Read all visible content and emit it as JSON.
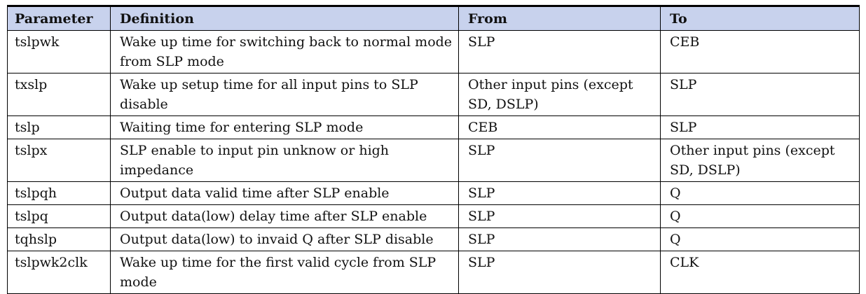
{
  "headers": {
    "parameter": "Parameter",
    "definition": "Definition",
    "from": "From",
    "to": "To"
  },
  "rows": [
    {
      "parameter": "tslpwk",
      "definition": "Wake up time for switching back to normal mode from SLP mode",
      "from": "SLP",
      "to": "CEB"
    },
    {
      "parameter": "txslp",
      "definition": "Wake up setup time for all input pins to SLP disable",
      "from": "Other input pins (except SD, DSLP)",
      "to": "SLP"
    },
    {
      "parameter": "tslp",
      "definition": "Waiting time for entering SLP mode",
      "from": "CEB",
      "to": "SLP"
    },
    {
      "parameter": "tslpx",
      "definition": "SLP enable to input pin unknow or high impedance",
      "from": "SLP",
      "to": "Other input pins (except SD, DSLP)"
    },
    {
      "parameter": "tslpqh",
      "definition": "Output data valid time after SLP enable",
      "from": "SLP",
      "to": "Q"
    },
    {
      "parameter": "tslpq",
      "definition": "Output data(low) delay time after SLP enable",
      "from": "SLP",
      "to": "Q"
    },
    {
      "parameter": "tqhslp",
      "definition": "Output data(low) to invaid Q after SLP disable",
      "from": "SLP",
      "to": "Q"
    },
    {
      "parameter": "tslpwk2clk",
      "definition": "Wake up time for the first valid cycle from SLP mode",
      "from": "SLP",
      "to": "CLK"
    }
  ]
}
